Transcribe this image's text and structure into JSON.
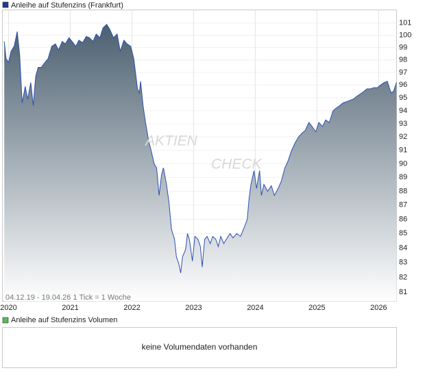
{
  "chart_data": {
    "type": "line",
    "title": "Anleihe auf Stufenzins (Frankfurt)",
    "subtitle": "04.12.19 - 19.04.26   1 Tick = 1 Woche",
    "watermark": [
      "AKTIEN",
      "CHECK"
    ],
    "log_scale": true,
    "grid": true,
    "color": "#2a4fb0",
    "fill_color": "#4c6070",
    "xlim": [
      2019.9,
      2026.29
    ],
    "xticks": [
      2020,
      2021,
      2022,
      2023,
      2024,
      2025,
      2026
    ],
    "ylim": [
      80.4,
      102.1
    ],
    "yticks": [
      81,
      82,
      83,
      84,
      85,
      86,
      87,
      88,
      89,
      90,
      91,
      92,
      93,
      94,
      95,
      96,
      97,
      98,
      99,
      100,
      101
    ],
    "series": [
      {
        "name": "Anleihe auf Stufenzins (Frankfurt)",
        "color": "#1f3c8c",
        "x": [
          2019.93,
          2019.96,
          2020.0,
          2020.04,
          2020.09,
          2020.14,
          2020.18,
          2020.22,
          2020.27,
          2020.31,
          2020.36,
          2020.4,
          2020.44,
          2020.48,
          2020.53,
          2020.59,
          2020.64,
          2020.7,
          2020.76,
          2020.81,
          2020.87,
          2020.92,
          2020.98,
          2021.03,
          2021.09,
          2021.14,
          2021.2,
          2021.26,
          2021.31,
          2021.37,
          2021.42,
          2021.48,
          2021.53,
          2021.59,
          2021.64,
          2021.7,
          2021.76,
          2021.81,
          2021.87,
          2021.92,
          2021.98,
          2022.03,
          2022.09,
          2022.12,
          2022.14,
          2022.18,
          2022.22,
          2022.27,
          2022.31,
          2022.36,
          2022.4,
          2022.44,
          2022.48,
          2022.51,
          2022.56,
          2022.6,
          2022.64,
          2022.69,
          2022.72,
          2022.76,
          2022.79,
          2022.82,
          2022.87,
          2022.9,
          2022.93,
          2022.98,
          2023.02,
          2023.07,
          2023.11,
          2023.14,
          2023.18,
          2023.22,
          2023.27,
          2023.31,
          2023.36,
          2023.4,
          2023.44,
          2023.49,
          2023.53,
          2023.59,
          2023.64,
          2023.7,
          2023.76,
          2023.81,
          2023.87,
          2023.9,
          2023.93,
          2023.98,
          2024.02,
          2024.07,
          2024.1,
          2024.14,
          2024.2,
          2024.26,
          2024.31,
          2024.37,
          2024.42,
          2024.48,
          2024.53,
          2024.59,
          2024.64,
          2024.7,
          2024.76,
          2024.81,
          2024.87,
          2024.92,
          2024.98,
          2025.03,
          2025.09,
          2025.14,
          2025.2,
          2025.26,
          2025.31,
          2025.37,
          2025.42,
          2025.48,
          2025.53,
          2025.59,
          2025.64,
          2025.7,
          2025.76,
          2025.81,
          2025.87,
          2025.92,
          2025.98,
          2026.03,
          2026.09,
          2026.14,
          2026.2,
          2026.24,
          2026.29
        ],
        "values": [
          99.5,
          98.1,
          97.8,
          98.7,
          99.1,
          100.3,
          98.4,
          94.6,
          95.9,
          94.9,
          96.2,
          94.4,
          96.7,
          97.4,
          97.4,
          97.8,
          98.1,
          99.1,
          99.3,
          98.8,
          99.5,
          99.3,
          99.8,
          99.5,
          99.1,
          99.6,
          99.4,
          99.9,
          99.8,
          99.5,
          100.1,
          99.8,
          100.6,
          100.9,
          100.5,
          99.8,
          100.1,
          98.7,
          99.6,
          99.3,
          99.1,
          98.1,
          95.7,
          95.4,
          96.3,
          94.4,
          93.1,
          91.7,
          91.0,
          90.0,
          89.7,
          87.7,
          89.2,
          89.7,
          88.5,
          87.2,
          85.3,
          84.6,
          83.4,
          82.9,
          82.3,
          83.4,
          83.9,
          85.0,
          84.6,
          83.1,
          84.8,
          84.6,
          84.1,
          82.7,
          84.6,
          84.8,
          84.3,
          84.8,
          84.6,
          84.1,
          84.8,
          84.3,
          84.6,
          85.0,
          84.7,
          85.0,
          84.8,
          85.3,
          86.0,
          87.5,
          88.5,
          89.5,
          88.2,
          89.5,
          87.7,
          88.5,
          88.0,
          88.4,
          87.7,
          88.2,
          88.7,
          89.7,
          90.2,
          91.0,
          91.5,
          92.0,
          92.3,
          92.5,
          93.1,
          92.8,
          92.4,
          93.1,
          92.8,
          93.3,
          93.1,
          94.0,
          94.2,
          94.4,
          94.6,
          94.7,
          94.8,
          94.9,
          95.1,
          95.3,
          95.5,
          95.7,
          95.7,
          95.8,
          95.8,
          96.0,
          96.2,
          96.3,
          95.4,
          95.5,
          96.2
        ]
      }
    ],
    "volume": {
      "title": "Anleihe auf Stufenzins Volumen",
      "color": "#5cb85c",
      "message": "keine Volumendaten vorhanden"
    }
  }
}
